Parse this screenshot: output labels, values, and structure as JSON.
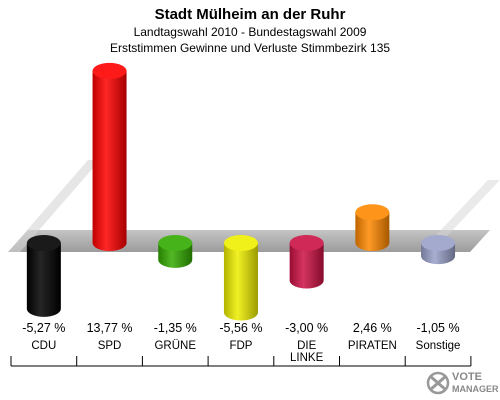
{
  "chart_data": {
    "type": "bar",
    "title": "Stadt Mülheim an der Ruhr",
    "subtitle_1": "Landtagswahl 2010 - Bundestagswahl 2009",
    "subtitle_2": "Erststimmen Gewinne und Verluste Stimmbezirk 135",
    "unit": "%",
    "categories": [
      "CDU",
      "SPD",
      "GRÜNE",
      "FDP",
      "DIE LINKE",
      "PIRATEN",
      "Sonstige"
    ],
    "values": [
      -5.27,
      13.77,
      -1.35,
      -5.56,
      -3.0,
      2.46,
      -1.05
    ],
    "value_labels": [
      "-5,27 %",
      "13,77 %",
      "-1,35 %",
      "-5,56 %",
      "-3,00 %",
      "2,46 %",
      "-1,05 %"
    ],
    "colors": [
      "#000000",
      "#ff0000",
      "#33aa00",
      "#eeee00",
      "#cc1144",
      "#ff8800",
      "#99a0c8"
    ],
    "ylim": [
      -6,
      14
    ],
    "grid": false
  },
  "logo": {
    "text": "VOTE MANAGER"
  }
}
